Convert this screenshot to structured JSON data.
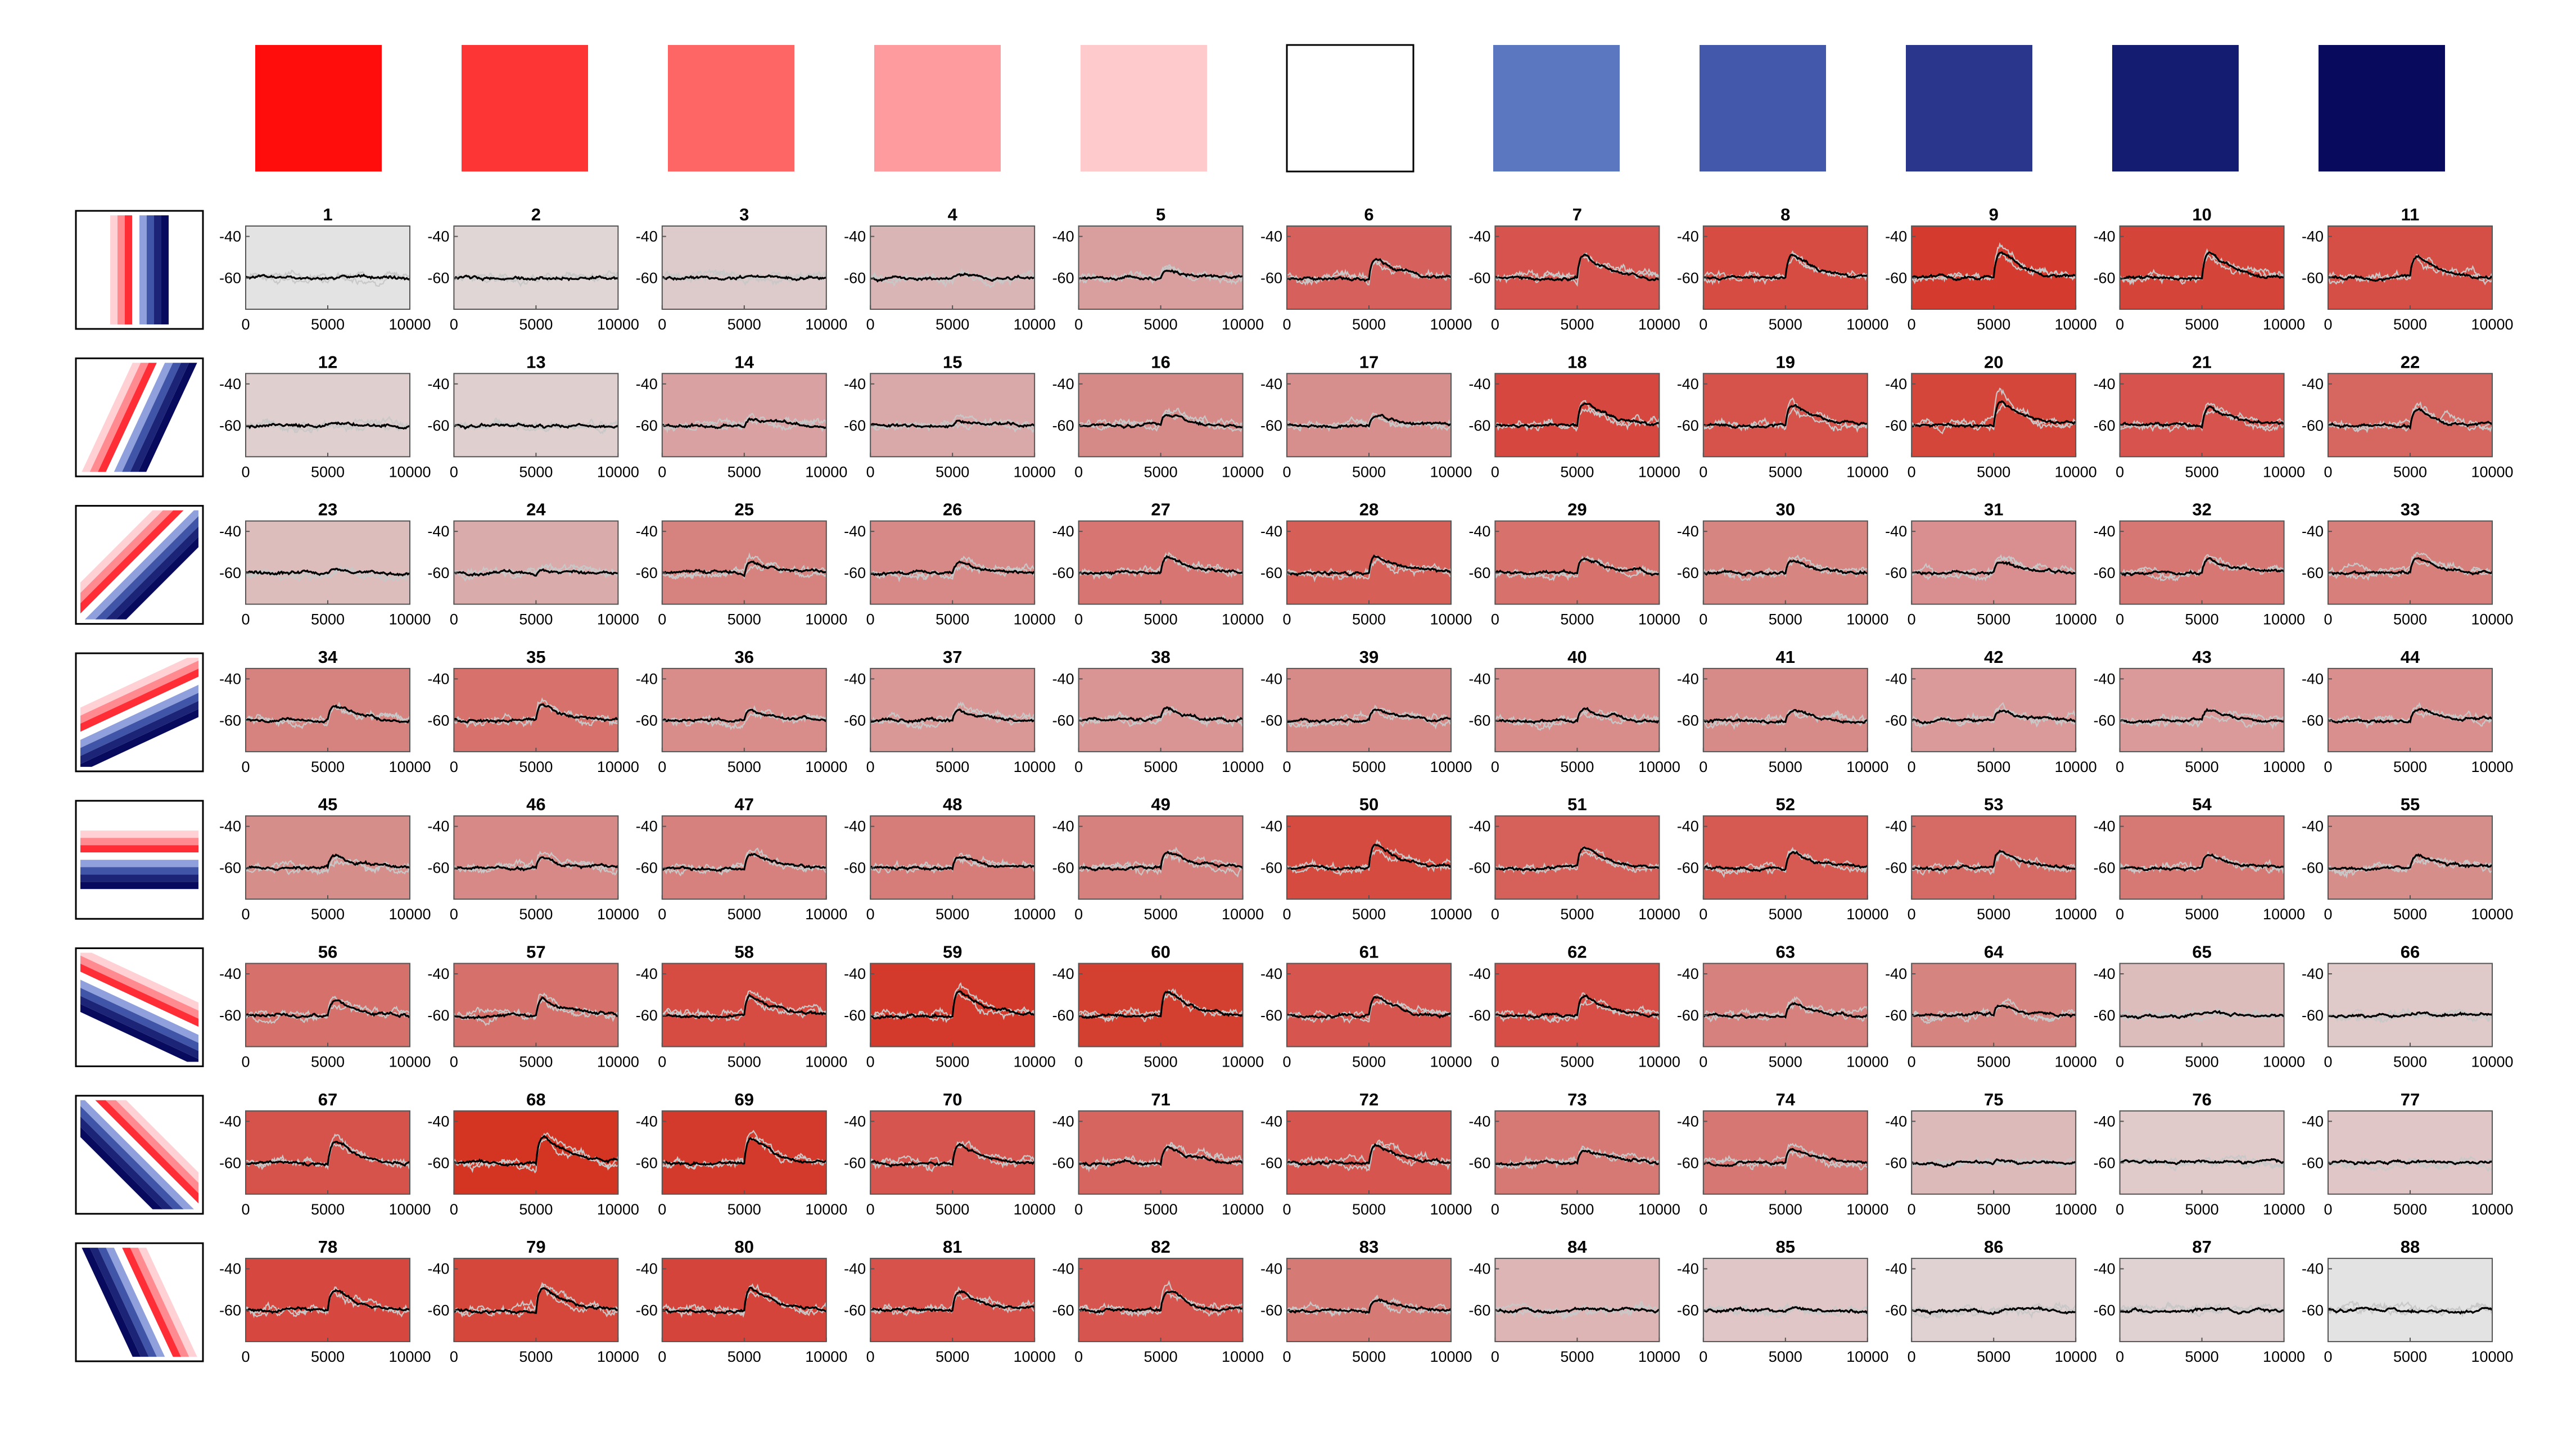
{
  "chart_data": {
    "type": "line",
    "swatches": [
      "#ff0d0d",
      "#fe3535",
      "#fe6565",
      "#fd9b9e",
      "#fecacc",
      "#ffffff",
      "#5a77bf",
      "#4358aa",
      "#2a358c",
      "#141c72",
      "#080b5d"
    ],
    "stimulus_orientations": [
      "vertical",
      "steep-right",
      "diagonal-right",
      "shallow-right",
      "horizontal",
      "shallow-left",
      "diagonal-left",
      "steep-left"
    ],
    "x_ticks": [
      "0",
      "5000",
      "10000"
    ],
    "y_ticks": [
      "-40",
      "-60"
    ],
    "xlim": [
      0,
      10000
    ],
    "ylim": [
      -75,
      -35
    ],
    "baseline": -60,
    "peak_time": 5600,
    "panels": [
      {
        "title": "1",
        "peak": 0.3,
        "color": "#e3e3e3"
      },
      {
        "title": "2",
        "peak": 0.5,
        "color": "#e0d6d6"
      },
      {
        "title": "3",
        "peak": 0.6,
        "color": "#ddcaca"
      },
      {
        "title": "4",
        "peak": 3,
        "color": "#d9b5b5"
      },
      {
        "title": "5",
        "peak": 6,
        "color": "#d99e9e"
      },
      {
        "title": "6",
        "peak": 14,
        "color": "#d6615c"
      },
      {
        "title": "7",
        "peak": 17,
        "color": "#d6544d"
      },
      {
        "title": "8",
        "peak": 16,
        "color": "#d64b42"
      },
      {
        "title": "9",
        "peak": 19,
        "color": "#d43a2d"
      },
      {
        "title": "10",
        "peak": 18,
        "color": "#d44438"
      },
      {
        "title": "11",
        "peak": 15,
        "color": "#d64f46"
      },
      {
        "title": "12",
        "peak": 0.8,
        "color": "#e0cfcf"
      },
      {
        "title": "13",
        "peak": 0.6,
        "color": "#e0cfcf"
      },
      {
        "title": "14",
        "peak": 5,
        "color": "#d9a1a1"
      },
      {
        "title": "15",
        "peak": 4,
        "color": "#d9a8a8"
      },
      {
        "title": "16",
        "peak": 8,
        "color": "#d68a87"
      },
      {
        "title": "17",
        "peak": 7,
        "color": "#d68f8c"
      },
      {
        "title": "18",
        "peak": 16,
        "color": "#d6483f"
      },
      {
        "title": "19",
        "peak": 15,
        "color": "#d6534b"
      },
      {
        "title": "20",
        "peak": 18,
        "color": "#d4463a"
      },
      {
        "title": "21",
        "peak": 14,
        "color": "#d6544d"
      },
      {
        "title": "22",
        "peak": 12,
        "color": "#d66660"
      },
      {
        "title": "23",
        "peak": 2,
        "color": "#ddbcbc"
      },
      {
        "title": "24",
        "peak": 4,
        "color": "#d9abab"
      },
      {
        "title": "25",
        "peak": 9,
        "color": "#d6827e"
      },
      {
        "title": "26",
        "peak": 8,
        "color": "#d68986"
      },
      {
        "title": "27",
        "peak": 11,
        "color": "#d67572"
      },
      {
        "title": "28",
        "peak": 13,
        "color": "#d65f58"
      },
      {
        "title": "29",
        "peak": 11,
        "color": "#d6716c"
      },
      {
        "title": "30",
        "peak": 10,
        "color": "#d68580"
      },
      {
        "title": "31",
        "peak": 9,
        "color": "#d98f8f"
      },
      {
        "title": "32",
        "peak": 10,
        "color": "#d67773"
      },
      {
        "title": "33",
        "peak": 10,
        "color": "#d67f7b"
      },
      {
        "title": "34",
        "peak": 10,
        "color": "#d6837f"
      },
      {
        "title": "35",
        "peak": 12,
        "color": "#d6716c"
      },
      {
        "title": "36",
        "peak": 8,
        "color": "#d98d8a"
      },
      {
        "title": "37",
        "peak": 7,
        "color": "#d99796"
      },
      {
        "title": "38",
        "peak": 7,
        "color": "#d99594"
      },
      {
        "title": "39",
        "peak": 8,
        "color": "#d68b88"
      },
      {
        "title": "40",
        "peak": 8,
        "color": "#d98d8a"
      },
      {
        "title": "41",
        "peak": 8,
        "color": "#d68b88"
      },
      {
        "title": "42",
        "peak": 7,
        "color": "#d99a99"
      },
      {
        "title": "43",
        "peak": 7,
        "color": "#d99a99"
      },
      {
        "title": "44",
        "peak": 8,
        "color": "#d98f8d"
      },
      {
        "title": "45",
        "peak": 9,
        "color": "#d68e8b"
      },
      {
        "title": "46",
        "peak": 9,
        "color": "#d68986"
      },
      {
        "title": "47",
        "peak": 11,
        "color": "#d6817d"
      },
      {
        "title": "48",
        "peak": 8,
        "color": "#d67d79"
      },
      {
        "title": "49",
        "peak": 11,
        "color": "#d6817d"
      },
      {
        "title": "50",
        "peak": 17,
        "color": "#d64b3f"
      },
      {
        "title": "51",
        "peak": 14,
        "color": "#d6605a"
      },
      {
        "title": "52",
        "peak": 12,
        "color": "#d65a52"
      },
      {
        "title": "53",
        "peak": 12,
        "color": "#d66b66"
      },
      {
        "title": "54",
        "peak": 10,
        "color": "#d67874"
      },
      {
        "title": "55",
        "peak": 8,
        "color": "#d68e8b"
      },
      {
        "title": "56",
        "peak": 11,
        "color": "#d6706b"
      },
      {
        "title": "57",
        "peak": 13,
        "color": "#d6706b"
      },
      {
        "title": "58",
        "peak": 16,
        "color": "#d64b42"
      },
      {
        "title": "59",
        "peak": 19,
        "color": "#d43a2c"
      },
      {
        "title": "60",
        "peak": 18,
        "color": "#d4402f"
      },
      {
        "title": "61",
        "peak": 14,
        "color": "#d6554e"
      },
      {
        "title": "62",
        "peak": 14,
        "color": "#d64e45"
      },
      {
        "title": "63",
        "peak": 10,
        "color": "#d6817d"
      },
      {
        "title": "64",
        "peak": 7,
        "color": "#d68480"
      },
      {
        "title": "65",
        "peak": 2,
        "color": "#ddbcbc"
      },
      {
        "title": "66",
        "peak": 1.5,
        "color": "#e0c9c9"
      },
      {
        "title": "67",
        "peak": 16,
        "color": "#d6534b"
      },
      {
        "title": "68",
        "peak": 20,
        "color": "#d43523"
      },
      {
        "title": "69",
        "peak": 19,
        "color": "#d43a2c"
      },
      {
        "title": "70",
        "peak": 14,
        "color": "#d6554e"
      },
      {
        "title": "71",
        "peak": 13,
        "color": "#d66560"
      },
      {
        "title": "72",
        "peak": 14,
        "color": "#d6564f"
      },
      {
        "title": "73",
        "peak": 11,
        "color": "#d67873"
      },
      {
        "title": "74",
        "peak": 10,
        "color": "#d67773"
      },
      {
        "title": "75",
        "peak": 1.5,
        "color": "#ddbaba"
      },
      {
        "title": "76",
        "peak": 0.8,
        "color": "#e0caca"
      },
      {
        "title": "77",
        "peak": 0.8,
        "color": "#e0c6c6"
      },
      {
        "title": "78",
        "peak": 16,
        "color": "#d6483f"
      },
      {
        "title": "79",
        "peak": 17,
        "color": "#d6473b"
      },
      {
        "title": "80",
        "peak": 17,
        "color": "#d4443a"
      },
      {
        "title": "81",
        "peak": 14,
        "color": "#d6524a"
      },
      {
        "title": "82",
        "peak": 14,
        "color": "#d6554e"
      },
      {
        "title": "83",
        "peak": 9,
        "color": "#d67a76"
      },
      {
        "title": "84",
        "peak": 2,
        "color": "#ddb5b5"
      },
      {
        "title": "85",
        "peak": 1,
        "color": "#e0c6c6"
      },
      {
        "title": "86",
        "peak": 0.5,
        "color": "#e0d2d2"
      },
      {
        "title": "87",
        "peak": 0.8,
        "color": "#e0d2d2"
      },
      {
        "title": "88",
        "peak": 0.3,
        "color": "#e3e3e3"
      }
    ]
  }
}
